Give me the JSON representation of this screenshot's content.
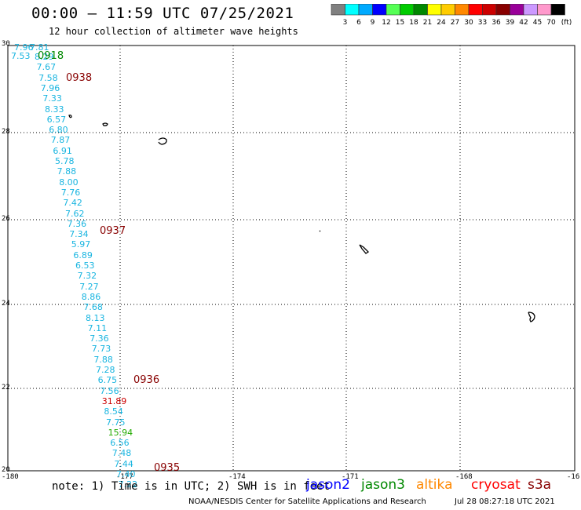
{
  "header": {
    "title": "00:00 — 11:59 UTC 07/25/2021",
    "subtitle": "12 hour collection of altimeter wave heights"
  },
  "legend": {
    "unit": "(ft)",
    "bins": [
      {
        "label": "3",
        "color": "#808080"
      },
      {
        "label": "6",
        "color": "#00ffff"
      },
      {
        "label": "9",
        "color": "#00aaff"
      },
      {
        "label": "12",
        "color": "#0000ff"
      },
      {
        "label": "15",
        "color": "#55ff55"
      },
      {
        "label": "18",
        "color": "#00cc00"
      },
      {
        "label": "21",
        "color": "#008800"
      },
      {
        "label": "24",
        "color": "#ffff00"
      },
      {
        "label": "27",
        "color": "#ffcc00"
      },
      {
        "label": "30",
        "color": "#ff8800"
      },
      {
        "label": "33",
        "color": "#ff0000"
      },
      {
        "label": "36",
        "color": "#cc0000"
      },
      {
        "label": "39",
        "color": "#880000"
      },
      {
        "label": "42",
        "color": "#990099"
      },
      {
        "label": "45",
        "color": "#cc99ff"
      },
      {
        "label": "70",
        "color": "#ff99cc"
      },
      {
        "label": "",
        "color": "#000000"
      }
    ]
  },
  "axes": {
    "x_ticks": [
      "-180",
      "-177",
      "-174",
      "-171",
      "-168",
      "-16"
    ],
    "y_ticks": [
      "30",
      "28",
      "26",
      "24",
      "22",
      "20"
    ]
  },
  "track": {
    "heights": [
      {
        "v": "7.96",
        "c": "#19b5e0"
      },
      {
        "v": "7.81",
        "c": "#19b5e0"
      },
      {
        "v": "7.53",
        "c": "#19b5e0"
      },
      {
        "v": "8.29",
        "c": "#19b5e0"
      },
      {
        "v": "7.67",
        "c": "#19b5e0"
      },
      {
        "v": "7.58",
        "c": "#19b5e0"
      },
      {
        "v": "7.96",
        "c": "#19b5e0"
      },
      {
        "v": "7.33",
        "c": "#19b5e0"
      },
      {
        "v": "8.33",
        "c": "#19b5e0"
      },
      {
        "v": "6.57",
        "c": "#19b5e0"
      },
      {
        "v": "6.80",
        "c": "#19b5e0"
      },
      {
        "v": "7.87",
        "c": "#19b5e0"
      },
      {
        "v": "6.91",
        "c": "#19b5e0"
      },
      {
        "v": "5.78",
        "c": "#19b5e0"
      },
      {
        "v": "7.88",
        "c": "#19b5e0"
      },
      {
        "v": "8.00",
        "c": "#19b5e0"
      },
      {
        "v": "7.76",
        "c": "#19b5e0"
      },
      {
        "v": "7.42",
        "c": "#19b5e0"
      },
      {
        "v": "7.62",
        "c": "#19b5e0"
      },
      {
        "v": "7.36",
        "c": "#19b5e0"
      },
      {
        "v": "7.34",
        "c": "#19b5e0"
      },
      {
        "v": "5.97",
        "c": "#19b5e0"
      },
      {
        "v": "6.89",
        "c": "#19b5e0"
      },
      {
        "v": "6.53",
        "c": "#19b5e0"
      },
      {
        "v": "7.32",
        "c": "#19b5e0"
      },
      {
        "v": "7.27",
        "c": "#19b5e0"
      },
      {
        "v": "8.86",
        "c": "#19b5e0"
      },
      {
        "v": "7.68",
        "c": "#19b5e0"
      },
      {
        "v": "8.13",
        "c": "#19b5e0"
      },
      {
        "v": "7.11",
        "c": "#19b5e0"
      },
      {
        "v": "7.36",
        "c": "#19b5e0"
      },
      {
        "v": "7.73",
        "c": "#19b5e0"
      },
      {
        "v": "7.88",
        "c": "#19b5e0"
      },
      {
        "v": "7.28",
        "c": "#19b5e0"
      },
      {
        "v": "6.75",
        "c": "#19b5e0"
      },
      {
        "v": "7.56",
        "c": "#19b5e0"
      },
      {
        "v": "31.89",
        "c": "#cc0000"
      },
      {
        "v": "8.54",
        "c": "#19b5e0"
      },
      {
        "v": "7.75",
        "c": "#19b5e0"
      },
      {
        "v": "15.94",
        "c": "#22aa00"
      },
      {
        "v": "6.56",
        "c": "#19b5e0"
      },
      {
        "v": "7.48",
        "c": "#19b5e0"
      },
      {
        "v": "7.44",
        "c": "#19b5e0"
      },
      {
        "v": "7.40",
        "c": "#19b5e0"
      },
      {
        "v": "7.22",
        "c": "#19b5e0"
      }
    ],
    "times": [
      {
        "v": "0918",
        "c": "#008800"
      },
      {
        "v": "0938",
        "c": "#880000"
      },
      {
        "v": "0937",
        "c": "#880000"
      },
      {
        "v": "0936",
        "c": "#880000"
      },
      {
        "v": "0935",
        "c": "#880000"
      }
    ]
  },
  "footer": {
    "note": "note: 1) Time is in UTC; 2) SWH is in feet",
    "satellites": [
      {
        "name": "jason2",
        "color": "#0000ff"
      },
      {
        "name": "jason3",
        "color": "#008800"
      },
      {
        "name": "altika",
        "color": "#ff8800"
      },
      {
        "name": "cryosat",
        "color": "#ff0000"
      },
      {
        "name": "s3a",
        "color": "#880000"
      }
    ],
    "credit": "NOAA/NESDIS Center for Satellite Applications and Research",
    "generated": "Jul 28 08:27:18 UTC 2021"
  }
}
